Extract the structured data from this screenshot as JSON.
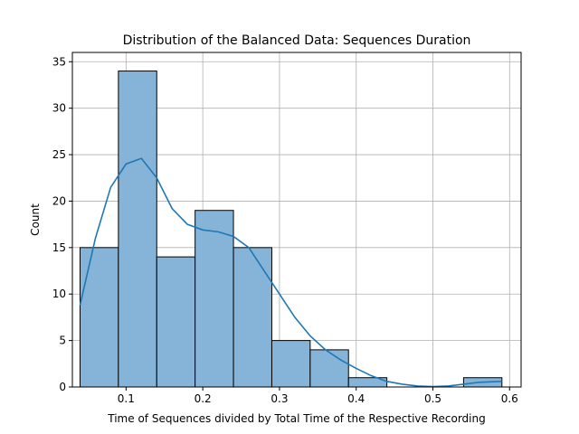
{
  "chart_data": {
    "type": "bar",
    "subtype": "histogram-with-kde",
    "title": "Distribution of the Balanced Data: Sequences Duration",
    "xlabel": "Time of Sequences divided by Total Time of the Respective Recording",
    "ylabel": "Count",
    "xlim": [
      0.03,
      0.615
    ],
    "ylim": [
      0,
      36
    ],
    "xticks": [
      0.1,
      0.2,
      0.3,
      0.4,
      0.5,
      0.6
    ],
    "xtick_labels": [
      "0.1",
      "0.2",
      "0.3",
      "0.4",
      "0.5",
      "0.6"
    ],
    "yticks": [
      0,
      5,
      10,
      15,
      20,
      25,
      30,
      35
    ],
    "ytick_labels": [
      "0",
      "5",
      "10",
      "15",
      "20",
      "25",
      "30",
      "35"
    ],
    "grid": true,
    "bin_edges": [
      0.04,
      0.09,
      0.14,
      0.19,
      0.24,
      0.29,
      0.34,
      0.39,
      0.44,
      0.49,
      0.54,
      0.59
    ],
    "counts": [
      15,
      34,
      14,
      19,
      15,
      5,
      4,
      1,
      0,
      0,
      1
    ],
    "bar_color": "#86b4d8",
    "bar_edge_color": "#000000",
    "kde_color": "#1f77b4",
    "kde": {
      "x": [
        0.04,
        0.06,
        0.08,
        0.1,
        0.12,
        0.14,
        0.16,
        0.18,
        0.2,
        0.22,
        0.24,
        0.26,
        0.28,
        0.3,
        0.32,
        0.34,
        0.36,
        0.38,
        0.4,
        0.42,
        0.44,
        0.46,
        0.48,
        0.5,
        0.52,
        0.54,
        0.56,
        0.59
      ],
      "y": [
        8.8,
        16.0,
        21.5,
        24.0,
        24.6,
        22.5,
        19.2,
        17.5,
        16.9,
        16.7,
        16.2,
        15.0,
        12.5,
        10.0,
        7.5,
        5.5,
        4.0,
        2.9,
        2.0,
        1.2,
        0.6,
        0.3,
        0.1,
        0.05,
        0.1,
        0.3,
        0.5,
        0.6
      ]
    }
  }
}
